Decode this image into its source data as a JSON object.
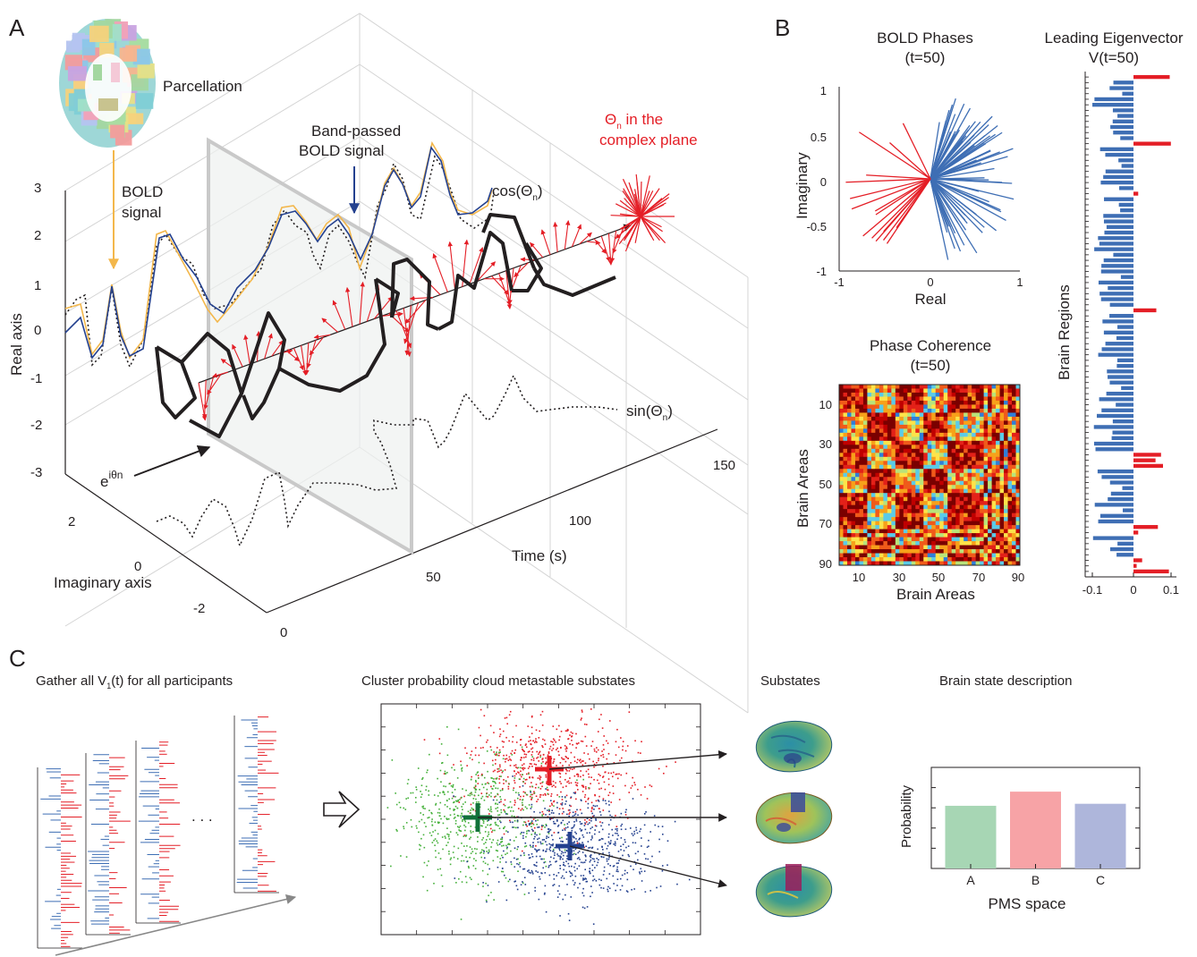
{
  "panel_a": {
    "letter": "A",
    "parcellation": "Parcellation",
    "bold_signal": [
      "BOLD",
      "signal"
    ],
    "band_passed": [
      "Band-passed",
      "BOLD signal"
    ],
    "cos_label": "cos(Θ",
    "cos_sub": "n",
    "theta_label": [
      "Θ",
      "n",
      " in the"
    ],
    "complex_plane": "complex plane",
    "sin_label": "sin(Θ",
    "sin_sub": "n",
    "euler": "e",
    "euler_sup": "iθn",
    "real_axis": "Real axis",
    "imag_axis": "Imaginary axis",
    "time_axis": "Time (s)",
    "real_ticks": [
      "3",
      "2",
      "1",
      "0",
      "-1",
      "-2",
      "-3"
    ],
    "imag_ticks": [
      "2",
      "0",
      "-2"
    ],
    "time_ticks": [
      "0",
      "50",
      "100",
      "150"
    ]
  },
  "panel_b": {
    "letter": "B",
    "phases_title": [
      "BOLD Phases",
      "(t=50)"
    ],
    "phases_xlabel": "Real",
    "phases_ylabel": "Imaginary",
    "phases_yticks": [
      "1",
      "0.5",
      "0",
      "-0.5",
      "-1"
    ],
    "phases_xticks": [
      "-1",
      "0",
      "1"
    ],
    "coherence_title": [
      "Phase Coherence",
      "(t=50)"
    ],
    "coherence_xlabel": "Brain Areas",
    "coherence_ylabel": "Brain Areas",
    "coherence_ticks": [
      "10",
      "30",
      "50",
      "70",
      "90"
    ],
    "eig_title": [
      "Leading Eigenvector",
      "V(t=50)"
    ],
    "eig_ylabel": "Brain Regions",
    "eig_xticks": [
      "-0.1",
      "0",
      "0.1"
    ]
  },
  "panel_c": {
    "letter": "C",
    "gather": "Gather all V",
    "gather_sub": "1",
    "gather_rest": "(t) for all participants",
    "dots": ". . .",
    "cluster": "Cluster probability cloud metastable substates",
    "substates": "Substates",
    "brain_state": "Brain state description",
    "prob_ylabel": "Probability",
    "prob_xlabel": "PMS space"
  },
  "chart_data": {
    "type": "bar",
    "categories": [
      "A",
      "B",
      "C"
    ],
    "values": [
      0.31,
      0.38,
      0.32
    ],
    "ylim": [
      0,
      0.5
    ],
    "xlabel": "PMS space",
    "ylabel": "Probability",
    "colors": [
      "#a7d6b4",
      "#f7a3a6",
      "#aeb6db"
    ]
  },
  "colors": {
    "red": "#e41e26",
    "blue": "#3e6eb4",
    "orange": "#f3b74b",
    "navy": "#24418f",
    "green": "#45b03a",
    "dark_green": "#11713a"
  }
}
